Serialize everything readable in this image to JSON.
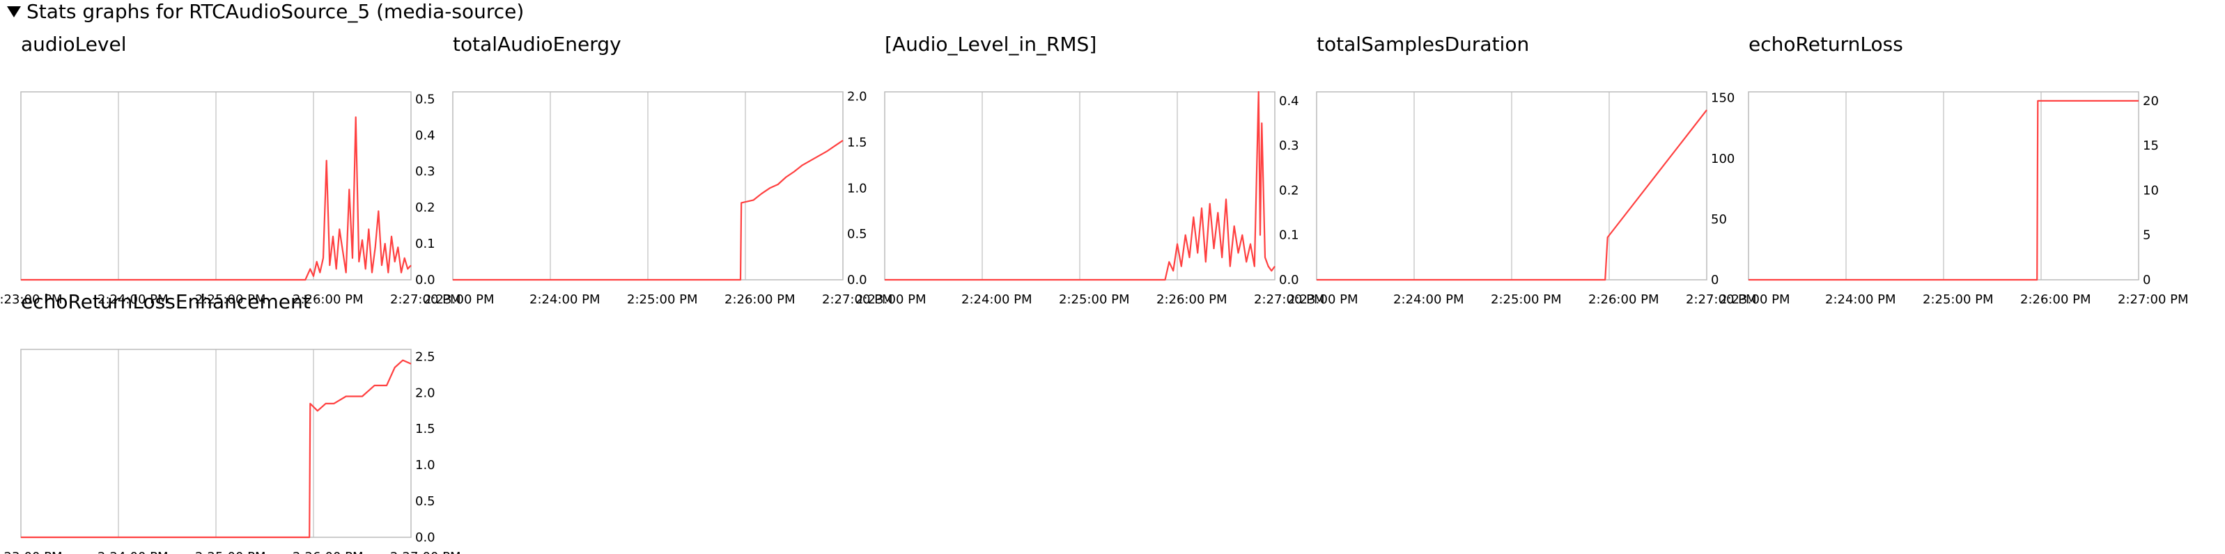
{
  "header": {
    "label": "Stats graphs for RTCAudioSource_5 (media-source)"
  },
  "x_tick_labels": [
    "2:23:00 PM",
    "2:24:00 PM",
    "2:25:00 PM",
    "2:26:00 PM",
    "2:27:00 PM"
  ],
  "colors": {
    "line": "#ff4040",
    "grid": "#cccccc",
    "frame": "#bbbbbb"
  },
  "chart_data": [
    {
      "title": "audioLevel",
      "type": "line",
      "x_range_minutes": [
        0,
        4.8
      ],
      "ylim": [
        0,
        0.52
      ],
      "y_ticks": [
        "0.0",
        "0.1",
        "0.2",
        "0.3",
        "0.4",
        "0.5"
      ],
      "y_tick_values": [
        0,
        0.1,
        0.2,
        0.3,
        0.4,
        0.5
      ],
      "x": [
        0,
        3.5,
        3.56,
        3.6,
        3.64,
        3.68,
        3.72,
        3.76,
        3.8,
        3.84,
        3.88,
        3.92,
        3.96,
        4.0,
        4.04,
        4.08,
        4.12,
        4.16,
        4.2,
        4.24,
        4.28,
        4.32,
        4.36,
        4.4,
        4.44,
        4.48,
        4.52,
        4.56,
        4.6,
        4.64,
        4.68,
        4.72,
        4.76,
        4.8
      ],
      "y": [
        0,
        0,
        0.03,
        0.01,
        0.05,
        0.02,
        0.06,
        0.33,
        0.04,
        0.12,
        0.03,
        0.14,
        0.08,
        0.02,
        0.25,
        0.06,
        0.45,
        0.05,
        0.11,
        0.03,
        0.14,
        0.02,
        0.09,
        0.19,
        0.04,
        0.1,
        0.02,
        0.12,
        0.05,
        0.09,
        0.02,
        0.06,
        0.03,
        0.04
      ]
    },
    {
      "title": "totalAudioEnergy",
      "type": "line",
      "x_range_minutes": [
        0,
        4.8
      ],
      "ylim": [
        0,
        2.05
      ],
      "y_ticks": [
        "0.0",
        "0.5",
        "1.0",
        "1.5",
        "2.0"
      ],
      "y_tick_values": [
        0,
        0.5,
        1.0,
        1.5,
        2.0
      ],
      "x": [
        0,
        3.54,
        3.55,
        3.7,
        3.8,
        3.9,
        4.0,
        4.1,
        4.2,
        4.3,
        4.4,
        4.5,
        4.6,
        4.7,
        4.8
      ],
      "y": [
        0,
        0,
        0.84,
        0.87,
        0.94,
        1.0,
        1.04,
        1.12,
        1.18,
        1.25,
        1.3,
        1.35,
        1.4,
        1.46,
        1.52
      ]
    },
    {
      "title": "[Audio_Level_in_RMS]",
      "type": "line",
      "x_range_minutes": [
        0,
        4.8
      ],
      "ylim": [
        0,
        0.42
      ],
      "y_ticks": [
        "0.0",
        "0.1",
        "0.2",
        "0.3",
        "0.4"
      ],
      "y_tick_values": [
        0,
        0.1,
        0.2,
        0.3,
        0.4
      ],
      "x": [
        0,
        3.45,
        3.5,
        3.55,
        3.6,
        3.65,
        3.7,
        3.75,
        3.8,
        3.85,
        3.9,
        3.95,
        4.0,
        4.05,
        4.1,
        4.15,
        4.2,
        4.25,
        4.3,
        4.35,
        4.4,
        4.45,
        4.5,
        4.55,
        4.6,
        4.62,
        4.64,
        4.68,
        4.72,
        4.76,
        4.8
      ],
      "y": [
        0,
        0,
        0.04,
        0.02,
        0.08,
        0.03,
        0.1,
        0.05,
        0.14,
        0.06,
        0.16,
        0.04,
        0.17,
        0.07,
        0.15,
        0.05,
        0.18,
        0.03,
        0.12,
        0.06,
        0.1,
        0.04,
        0.08,
        0.03,
        0.42,
        0.1,
        0.35,
        0.05,
        0.03,
        0.02,
        0.03
      ]
    },
    {
      "title": "totalSamplesDuration",
      "type": "line",
      "x_range_minutes": [
        0,
        4.8
      ],
      "ylim": [
        0,
        155
      ],
      "y_ticks": [
        "0",
        "50",
        "100",
        "150"
      ],
      "y_tick_values": [
        0,
        50,
        100,
        150
      ],
      "x": [
        0,
        3.55,
        3.58,
        4.8
      ],
      "y": [
        0,
        0,
        35,
        140
      ]
    },
    {
      "title": "echoReturnLoss",
      "type": "line",
      "x_range_minutes": [
        0,
        4.8
      ],
      "ylim": [
        0,
        21
      ],
      "y_ticks": [
        "0",
        "5",
        "10",
        "15",
        "20"
      ],
      "y_tick_values": [
        0,
        5,
        10,
        15,
        20
      ],
      "x": [
        0,
        3.55,
        3.56,
        4.8
      ],
      "y": [
        0,
        0,
        20,
        20
      ]
    },
    {
      "title": "echoReturnLossEnhancement",
      "type": "line",
      "x_range_minutes": [
        0,
        4.8
      ],
      "ylim": [
        0,
        2.6
      ],
      "y_ticks": [
        "0.0",
        "0.5",
        "1.0",
        "1.5",
        "2.0",
        "2.5"
      ],
      "y_tick_values": [
        0,
        0.5,
        1.0,
        1.5,
        2.0,
        2.5
      ],
      "x": [
        0,
        3.55,
        3.56,
        3.65,
        3.75,
        3.85,
        4.0,
        4.2,
        4.35,
        4.5,
        4.6,
        4.7,
        4.8
      ],
      "y": [
        0,
        0,
        1.85,
        1.75,
        1.85,
        1.85,
        1.95,
        1.95,
        2.1,
        2.1,
        2.35,
        2.45,
        2.4
      ]
    }
  ]
}
